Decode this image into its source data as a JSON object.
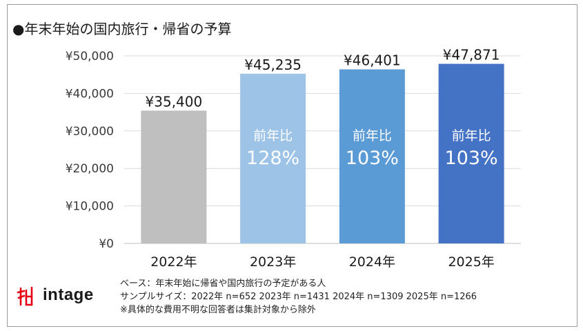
{
  "title": "●年末年始の国内旅行・帰省の予算",
  "chart_data": {
    "type": "bar",
    "categories": [
      "2022年",
      "2023年",
      "2024年",
      "2025年"
    ],
    "values": [
      35400,
      45235,
      46401,
      47871
    ],
    "value_labels": [
      "¥35,400",
      "¥45,235",
      "¥46,401",
      "¥47,871"
    ],
    "bar_colors": [
      "#bfbfbf",
      "#9dc3e6",
      "#5b9bd5",
      "#4472c4"
    ],
    "yoy_label": "前年比",
    "yoy_values": [
      null,
      "128%",
      "103%",
      "103%"
    ],
    "ylim": [
      0,
      50000
    ],
    "yticks": [
      0,
      10000,
      20000,
      30000,
      40000,
      50000
    ],
    "ytick_labels": [
      "¥0",
      "¥10,000",
      "¥20,000",
      "¥30,000",
      "¥40,000",
      "¥50,000"
    ],
    "grid": true,
    "xlabel": "",
    "ylabel": ""
  },
  "footer": {
    "base": "ベース：年末年始に帰省や国内旅行の予定がある人",
    "sample": "サンプルサイズ：2022年 n=652 2023年 n=1431 2024年 n=1309 2025年 n=1266",
    "note": "※具体的な費用不明な回答者は集計対象から除外"
  },
  "logo": {
    "text": "intage",
    "color": "#e60012"
  }
}
